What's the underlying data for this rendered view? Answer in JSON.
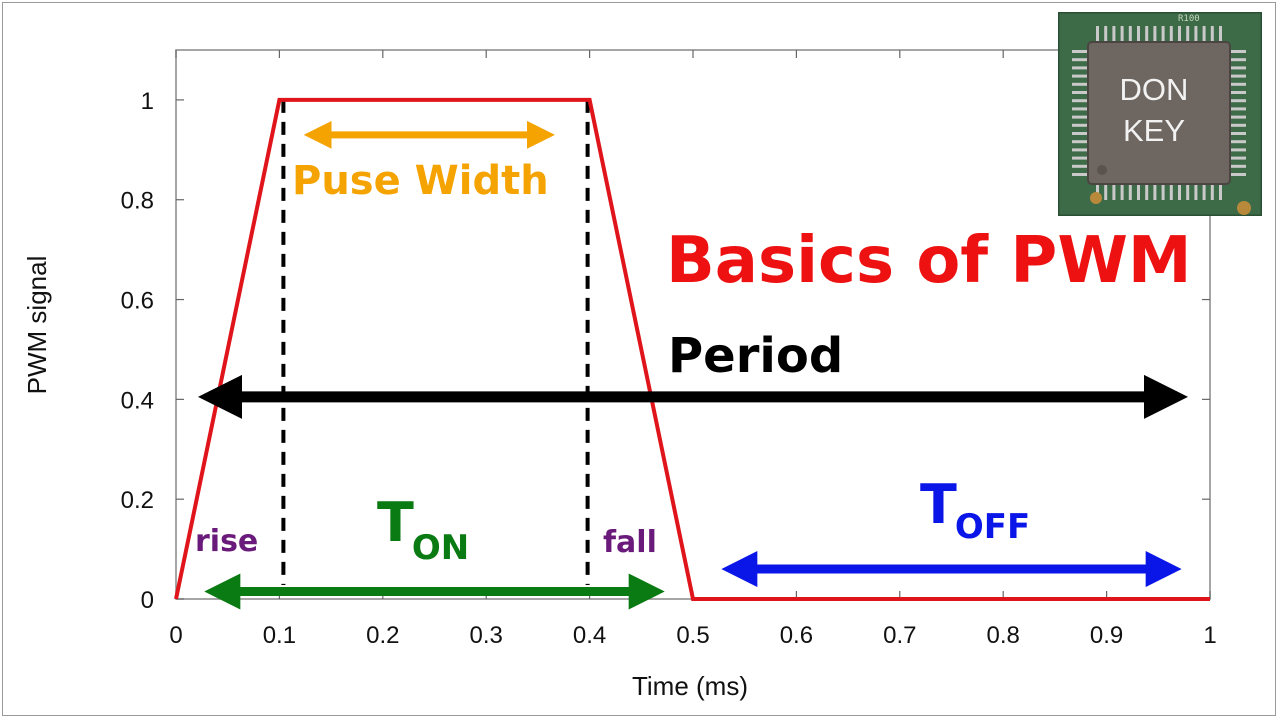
{
  "chart_data": {
    "type": "line",
    "xlabel": "Time (ms)",
    "ylabel": "PWM signal",
    "xlim": [
      0,
      1
    ],
    "ylim": [
      0,
      1.1
    ],
    "x_ticks": [
      "0",
      "0.1",
      "0.2",
      "0.3",
      "0.4",
      "0.5",
      "0.6",
      "0.7",
      "0.8",
      "0.9",
      "1"
    ],
    "y_ticks": [
      "0",
      "0.2",
      "0.4",
      "0.6",
      "0.8",
      "1"
    ],
    "grid": false,
    "series": [
      {
        "x": [
          0,
          0.1,
          0.4,
          0.5,
          1
        ],
        "y": [
          0,
          1,
          1,
          0,
          0
        ],
        "color": "#e0151b"
      }
    ],
    "dashed_lines": [
      {
        "x": 0.1
      },
      {
        "x": 0.4
      }
    ],
    "annotations": {
      "title": "Basics of PWM",
      "pulse_width": "Puse Width",
      "period": "Period",
      "rise": "rise",
      "fall": "fall",
      "t_on_main": "T",
      "t_on_sub": "ON",
      "t_off_main": "T",
      "t_off_sub": "OFF"
    },
    "arrows": [
      {
        "name": "pulse-width-arrow",
        "from": 0.11,
        "to": 0.38,
        "y": 0.93,
        "color": "#f5a300"
      },
      {
        "name": "period-arrow",
        "from": 0,
        "to": 1,
        "y": 0.405,
        "color": "#000000"
      },
      {
        "name": "t-on-arrow",
        "from": 0.01,
        "to": 0.49,
        "y": 0.015,
        "color": "#0a7a12"
      },
      {
        "name": "t-off-arrow",
        "from": 0.51,
        "to": 0.99,
        "y": 0.06,
        "color": "#0a16e8"
      }
    ],
    "colors": {
      "signal": "#e0151b",
      "title": "#ee1111",
      "pulse_width": "#f5a300",
      "period": "#000000",
      "rise_fall": "#6a1a7a",
      "t_on": "#0a7a12",
      "t_off": "#0a16e8"
    }
  },
  "chip_image": {
    "line1": "DON",
    "line2": "KEY",
    "board_marking": "R100"
  }
}
